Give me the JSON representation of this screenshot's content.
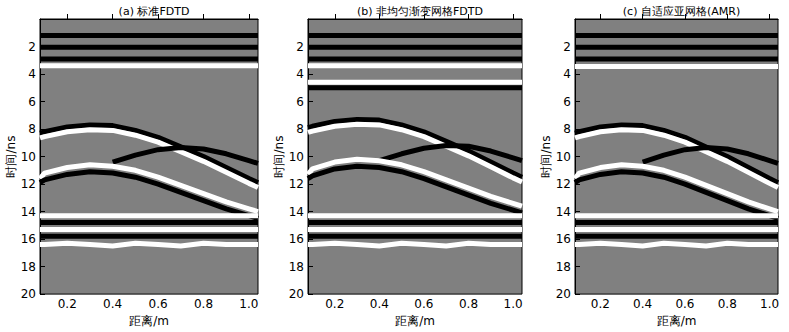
{
  "chart_data": [
    {
      "type": "line",
      "title": "(a) 标准FDTD",
      "x_label": "距离/m",
      "y_label": "时间/ns",
      "xlim": [
        0.08,
        1.04
      ],
      "xticks": [
        0.2,
        0.4,
        0.6,
        0.8,
        {
          "value": 1,
          "label": "1.0"
        }
      ],
      "ylim": [
        0,
        20
      ],
      "yticks": [
        2,
        4,
        6,
        8,
        10,
        12,
        14,
        16,
        18,
        20
      ],
      "x": [
        0.08,
        0.1,
        0.2,
        0.3,
        0.4,
        0.5,
        0.6,
        0.7,
        0.8,
        0.9,
        1.0,
        1.04
      ],
      "series": [
        {
          "color": "#000000",
          "values": [
            1.2,
            1.2,
            1.2,
            1.2,
            1.2,
            1.2,
            1.2,
            1.2,
            1.2,
            1.2,
            1.2,
            1.2
          ]
        },
        {
          "color": "#000000",
          "values": [
            2.05,
            2.05,
            2.05,
            2.05,
            2.05,
            2.05,
            2.05,
            2.05,
            2.05,
            2.05,
            2.05,
            2.05
          ]
        },
        {
          "color": "#000000",
          "values": [
            2.9,
            2.9,
            2.9,
            2.9,
            2.9,
            2.9,
            2.9,
            2.9,
            2.9,
            2.9,
            2.9,
            2.9
          ]
        },
        {
          "color": "#ffffff",
          "values": [
            3.4,
            3.4,
            3.4,
            3.4,
            3.4,
            3.4,
            3.4,
            3.4,
            3.4,
            3.4,
            3.4,
            3.4
          ]
        },
        {
          "color": "#000000",
          "values": [
            8.3,
            8.2,
            7.85,
            7.7,
            7.75,
            8.1,
            8.6,
            9.3,
            10.0,
            10.8,
            11.6,
            11.9
          ]
        },
        {
          "color": "#ffffff",
          "values": [
            8.65,
            8.55,
            8.2,
            8.05,
            8.1,
            8.45,
            8.95,
            9.65,
            10.35,
            11.15,
            11.95,
            12.25
          ]
        },
        {
          "color": "#000000",
          "values": [
            null,
            null,
            null,
            null,
            10.4,
            9.9,
            9.5,
            9.35,
            9.45,
            9.8,
            10.3,
            10.5
          ]
        },
        {
          "color": "#ffffff",
          "values": [
            11.6,
            11.2,
            10.8,
            10.6,
            10.7,
            11.0,
            11.5,
            12.1,
            12.7,
            13.3,
            13.8,
            14.0
          ]
        },
        {
          "color": "#000000",
          "values": [
            11.9,
            11.7,
            11.3,
            11.1,
            11.2,
            11.5,
            12.0,
            12.6,
            13.2,
            13.8,
            14.3,
            14.5
          ]
        },
        {
          "color": "#ffffff",
          "values": [
            14.3,
            14.3,
            14.3,
            14.3,
            14.3,
            14.3,
            14.3,
            14.3,
            14.3,
            14.3,
            14.3,
            14.3
          ]
        },
        {
          "color": "#000000",
          "values": [
            14.8,
            14.8,
            14.8,
            14.8,
            14.8,
            14.8,
            14.8,
            14.8,
            14.8,
            14.8,
            14.8,
            14.8
          ]
        },
        {
          "color": "#ffffff",
          "values": [
            15.3,
            15.3,
            15.3,
            15.3,
            15.3,
            15.3,
            15.3,
            15.3,
            15.3,
            15.3,
            15.3,
            15.3
          ]
        },
        {
          "color": "#000000",
          "values": [
            15.8,
            15.8,
            15.8,
            15.8,
            15.8,
            15.8,
            15.8,
            15.8,
            15.8,
            15.8,
            15.8,
            15.8
          ]
        },
        {
          "color": "#ffffff",
          "values": [
            16.4,
            16.4,
            16.3,
            16.4,
            16.5,
            16.3,
            16.4,
            16.5,
            16.3,
            16.4,
            16.4,
            16.4
          ]
        }
      ]
    },
    {
      "type": "line",
      "title": "(b) 非均匀渐变网格FDTD",
      "x_label": "距离/m",
      "y_label": "时间/ns",
      "xlim": [
        0.08,
        1.04
      ],
      "xticks": [
        0.2,
        0.4,
        0.6,
        0.8,
        {
          "value": 1,
          "label": "1.0"
        }
      ],
      "ylim": [
        0,
        20
      ],
      "yticks": [
        2,
        4,
        6,
        8,
        10,
        12,
        14,
        16,
        18,
        20
      ],
      "x": [
        0.08,
        0.1,
        0.2,
        0.3,
        0.4,
        0.5,
        0.6,
        0.7,
        0.8,
        0.9,
        1.0,
        1.04
      ],
      "series": [
        {
          "color": "#000000",
          "values": [
            1.2,
            1.2,
            1.2,
            1.2,
            1.2,
            1.2,
            1.2,
            1.2,
            1.2,
            1.2,
            1.2,
            1.2
          ]
        },
        {
          "color": "#000000",
          "values": [
            2.05,
            2.05,
            2.05,
            2.05,
            2.05,
            2.05,
            2.05,
            2.05,
            2.05,
            2.05,
            2.05,
            2.05
          ]
        },
        {
          "color": "#000000",
          "values": [
            2.9,
            2.9,
            2.9,
            2.9,
            2.9,
            2.9,
            2.9,
            2.9,
            2.9,
            2.9,
            2.9,
            2.9
          ]
        },
        {
          "color": "#ffffff",
          "values": [
            3.4,
            3.4,
            3.4,
            3.4,
            3.4,
            3.4,
            3.4,
            3.4,
            3.4,
            3.4,
            3.4,
            3.4
          ]
        },
        {
          "color": "#ffffff",
          "values": [
            4.6,
            4.6,
            4.6,
            4.6,
            4.6,
            4.6,
            4.6,
            4.6,
            4.6,
            4.6,
            4.6,
            4.6
          ]
        },
        {
          "color": "#000000",
          "values": [
            5.0,
            5.0,
            5.0,
            5.0,
            5.0,
            5.0,
            5.0,
            5.0,
            5.0,
            5.0,
            5.0,
            5.0
          ]
        },
        {
          "color": "#000000",
          "values": [
            7.9,
            7.8,
            7.45,
            7.3,
            7.35,
            7.7,
            8.2,
            8.9,
            9.6,
            10.4,
            11.2,
            11.5
          ]
        },
        {
          "color": "#ffffff",
          "values": [
            8.25,
            8.15,
            7.8,
            7.65,
            7.7,
            8.05,
            8.55,
            9.25,
            9.95,
            10.75,
            11.55,
            11.85
          ]
        },
        {
          "color": "#000000",
          "values": [
            null,
            null,
            null,
            null,
            10.3,
            9.8,
            9.4,
            9.2,
            9.25,
            9.6,
            10.1,
            10.3
          ]
        },
        {
          "color": "#ffffff",
          "values": [
            11.3,
            10.9,
            10.4,
            10.2,
            10.3,
            10.6,
            11.1,
            11.7,
            12.3,
            12.9,
            13.4,
            13.6
          ]
        },
        {
          "color": "#000000",
          "values": [
            11.6,
            11.4,
            10.9,
            10.7,
            10.8,
            11.1,
            11.6,
            12.2,
            12.8,
            13.4,
            13.9,
            14.1
          ]
        },
        {
          "color": "#ffffff",
          "values": [
            14.3,
            14.3,
            14.3,
            14.3,
            14.3,
            14.3,
            14.3,
            14.3,
            14.3,
            14.3,
            14.3,
            14.3
          ]
        },
        {
          "color": "#000000",
          "values": [
            14.8,
            14.8,
            14.8,
            14.8,
            14.8,
            14.8,
            14.8,
            14.8,
            14.8,
            14.8,
            14.8,
            14.8
          ]
        },
        {
          "color": "#ffffff",
          "values": [
            15.3,
            15.3,
            15.3,
            15.3,
            15.3,
            15.3,
            15.3,
            15.3,
            15.3,
            15.3,
            15.3,
            15.3
          ]
        },
        {
          "color": "#000000",
          "values": [
            15.8,
            15.8,
            15.8,
            15.8,
            15.8,
            15.8,
            15.8,
            15.8,
            15.8,
            15.8,
            15.8,
            15.8
          ]
        },
        {
          "color": "#ffffff",
          "values": [
            16.4,
            16.4,
            16.3,
            16.4,
            16.5,
            16.3,
            16.4,
            16.5,
            16.3,
            16.4,
            16.4,
            16.4
          ]
        }
      ]
    },
    {
      "type": "line",
      "title": "(c) 自适应亚网格(AMR)",
      "x_label": "距离/m",
      "y_label": "时间/ns",
      "xlim": [
        0.08,
        1.04
      ],
      "xticks": [
        0.2,
        0.4,
        0.6,
        0.8,
        {
          "value": 1,
          "label": "1.0"
        }
      ],
      "ylim": [
        0,
        20
      ],
      "yticks": [
        2,
        4,
        6,
        8,
        10,
        12,
        14,
        16,
        18,
        20
      ],
      "x": [
        0.08,
        0.1,
        0.2,
        0.3,
        0.4,
        0.5,
        0.6,
        0.7,
        0.8,
        0.9,
        1.0,
        1.04
      ],
      "series": [
        {
          "color": "#000000",
          "values": [
            1.2,
            1.2,
            1.2,
            1.2,
            1.2,
            1.2,
            1.2,
            1.2,
            1.2,
            1.2,
            1.2,
            1.2
          ]
        },
        {
          "color": "#000000",
          "values": [
            2.05,
            2.05,
            2.05,
            2.05,
            2.05,
            2.05,
            2.05,
            2.05,
            2.05,
            2.05,
            2.05,
            2.05
          ]
        },
        {
          "color": "#000000",
          "values": [
            2.9,
            2.9,
            2.9,
            2.9,
            2.9,
            2.9,
            2.9,
            2.9,
            2.9,
            2.9,
            2.9,
            2.9
          ]
        },
        {
          "color": "#ffffff",
          "values": [
            3.45,
            3.45,
            3.45,
            3.45,
            3.45,
            3.45,
            3.45,
            3.45,
            3.45,
            3.45,
            3.45,
            3.45
          ]
        },
        {
          "color": "#000000",
          "values": [
            8.3,
            8.2,
            7.85,
            7.7,
            7.75,
            8.1,
            8.6,
            9.3,
            10.0,
            10.8,
            11.6,
            11.9
          ]
        },
        {
          "color": "#ffffff",
          "values": [
            8.65,
            8.55,
            8.2,
            8.05,
            8.1,
            8.45,
            8.95,
            9.65,
            10.35,
            11.15,
            11.95,
            12.25
          ]
        },
        {
          "color": "#000000",
          "values": [
            null,
            null,
            null,
            null,
            10.4,
            9.9,
            9.5,
            9.35,
            9.45,
            9.8,
            10.3,
            10.5
          ]
        },
        {
          "color": "#ffffff",
          "values": [
            11.6,
            11.2,
            10.8,
            10.6,
            10.7,
            11.0,
            11.5,
            12.1,
            12.7,
            13.3,
            13.8,
            14.0
          ]
        },
        {
          "color": "#000000",
          "values": [
            11.9,
            11.7,
            11.3,
            11.1,
            11.2,
            11.5,
            12.0,
            12.6,
            13.2,
            13.8,
            14.3,
            14.5
          ]
        },
        {
          "color": "#ffffff",
          "values": [
            14.3,
            14.3,
            14.3,
            14.3,
            14.3,
            14.3,
            14.3,
            14.3,
            14.3,
            14.3,
            14.3,
            14.3
          ]
        },
        {
          "color": "#000000",
          "values": [
            14.8,
            14.8,
            14.8,
            14.8,
            14.8,
            14.8,
            14.8,
            14.8,
            14.8,
            14.8,
            14.8,
            14.8
          ]
        },
        {
          "color": "#ffffff",
          "values": [
            15.3,
            15.3,
            15.3,
            15.3,
            15.3,
            15.3,
            15.3,
            15.3,
            15.3,
            15.3,
            15.3,
            15.3
          ]
        },
        {
          "color": "#000000",
          "values": [
            15.8,
            15.8,
            15.8,
            15.8,
            15.8,
            15.8,
            15.8,
            15.8,
            15.8,
            15.8,
            15.8,
            15.8
          ]
        },
        {
          "color": "#ffffff",
          "values": [
            16.4,
            16.4,
            16.3,
            16.4,
            16.5,
            16.3,
            16.4,
            16.5,
            16.3,
            16.4,
            16.4,
            16.4
          ]
        }
      ]
    }
  ]
}
